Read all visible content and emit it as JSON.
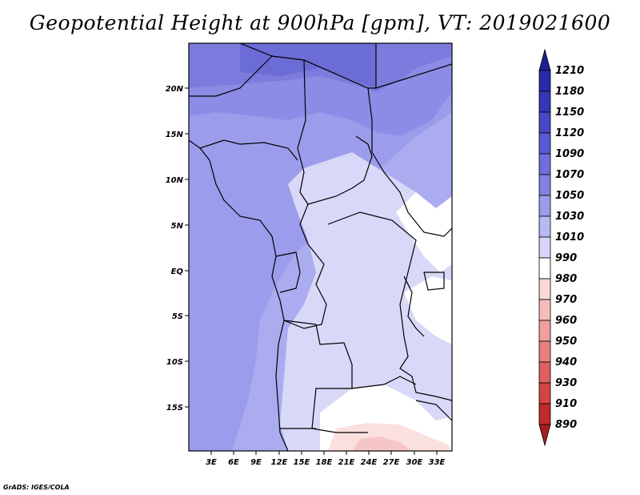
{
  "title": "Geopotential Height at 900hPa [gpm], VT: 2019021600",
  "credit": "GrADS: IGES/COLA",
  "map": {
    "lon_range": [
      0,
      35
    ],
    "lat_range": [
      -20,
      24
    ],
    "lat_ticks": [
      "20N",
      "15N",
      "10N",
      "5N",
      "EQ",
      "5S",
      "10S",
      "15S"
    ],
    "lon_ticks": [
      "3E",
      "6E",
      "9E",
      "12E",
      "15E",
      "18E",
      "21E",
      "24E",
      "27E",
      "30E",
      "33E"
    ]
  },
  "colorbar": {
    "labels": [
      "1210",
      "1180",
      "1150",
      "1120",
      "1090",
      "1070",
      "1050",
      "1030",
      "1010",
      "990",
      "980",
      "970",
      "960",
      "950",
      "940",
      "930",
      "910",
      "890"
    ],
    "colors": [
      "#1e1e96",
      "#2a2aa8",
      "#3636b8",
      "#4848c6",
      "#5a5ad2",
      "#6e6edc",
      "#8282e4",
      "#9c9cec",
      "#b8b8f2",
      "#d6d6f8",
      "#ffffff",
      "#fbd8d8",
      "#f6bcbc",
      "#f09e9e",
      "#e88080",
      "#e06060",
      "#d44444",
      "#c02a2a",
      "#a51c1c"
    ]
  }
}
